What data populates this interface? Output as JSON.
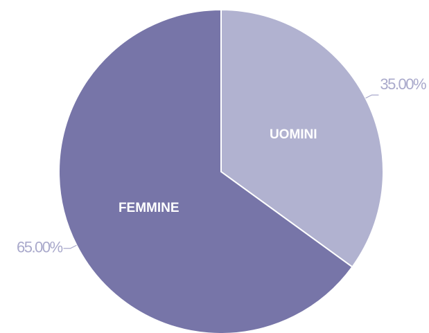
{
  "chart_data": {
    "type": "pie",
    "categories": [
      "UOMINI",
      "FEMMINE"
    ],
    "values": [
      35,
      65
    ],
    "value_labels": [
      "35.00%",
      "65.00%"
    ],
    "colors": [
      "#b1b2d0",
      "#7775a8"
    ]
  }
}
